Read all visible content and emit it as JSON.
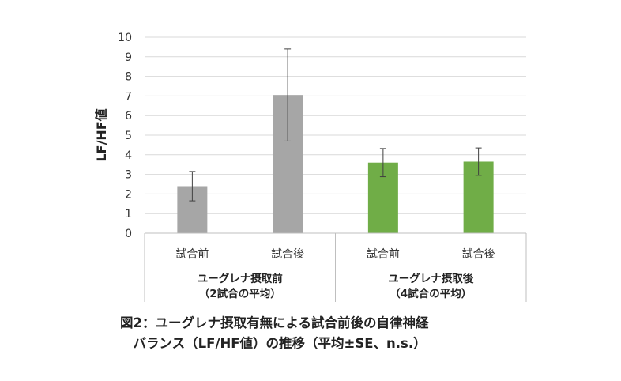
{
  "chart_data": {
    "type": "bar",
    "ylabel": "LF/HF値",
    "ylim": [
      0,
      10
    ],
    "yticks": [
      "0",
      "1",
      "2",
      "3",
      "4",
      "5",
      "6",
      "7",
      "8",
      "9",
      "10"
    ],
    "grid": true,
    "categories": [
      "試合前",
      "試合後",
      "試合前",
      "試合後"
    ],
    "groups": [
      {
        "label_line1": "ユーグレナ摂取前",
        "label_line2": "（2試合の平均）"
      },
      {
        "label_line1": "ユーグレナ摂取後",
        "label_line2": "（4試合の平均）"
      }
    ],
    "values": [
      2.4,
      7.05,
      3.6,
      3.65
    ],
    "errors": [
      0.75,
      2.35,
      0.72,
      0.7
    ],
    "colors": [
      "#a6a6a6",
      "#a6a6a6",
      "#70ad47",
      "#70ad47"
    ]
  },
  "caption": {
    "line1": "図2：ユーグレナ摂取有無による試合前後の自律神経",
    "line2": "　バランス（LF/HF値）の推移（平均±SE、n.s.）"
  }
}
